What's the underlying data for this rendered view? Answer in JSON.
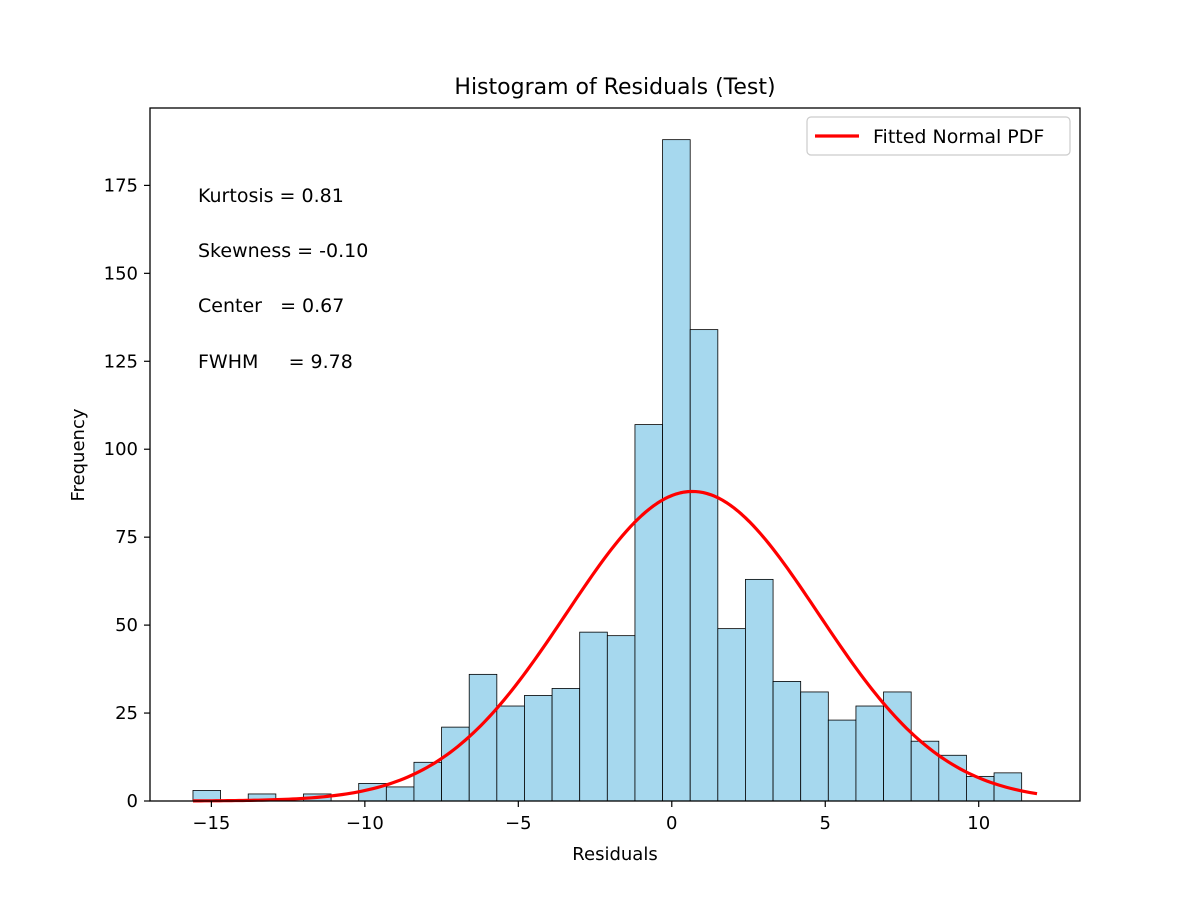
{
  "chart_data": {
    "type": "bar",
    "title": "Histogram of Residuals (Test)",
    "xlabel": "Residuals",
    "ylabel": "Frequency",
    "xlim": [
      -17.0,
      13.3
    ],
    "ylim": [
      0,
      197
    ],
    "xticks": [
      -15,
      -10,
      -5,
      0,
      5,
      10
    ],
    "xtick_labels": [
      "−15",
      "−10",
      "−5",
      "0",
      "5",
      "10"
    ],
    "yticks": [
      0,
      25,
      50,
      75,
      100,
      125,
      150,
      175
    ],
    "ytick_labels": [
      "0",
      "25",
      "50",
      "75",
      "100",
      "125",
      "150",
      "175"
    ],
    "bin_start": -15.6,
    "bin_width": 0.9,
    "counts": [
      3,
      0,
      2,
      0,
      2,
      0,
      5,
      4,
      11,
      21,
      36,
      27,
      30,
      32,
      48,
      47,
      107,
      188,
      134,
      49,
      63,
      34,
      31,
      23,
      27,
      31,
      17,
      13,
      7,
      8
    ],
    "bar_color": "#a6d8ee",
    "bar_edge_color": "#000000",
    "series": [
      {
        "name": "Fitted Normal PDF",
        "type": "line",
        "color": "#ff0000",
        "x_start": -15.6,
        "x_end": 11.9,
        "mean": 0.67,
        "sd": 4.1,
        "peak": 88
      }
    ],
    "legend": {
      "position": "top-right",
      "entries": [
        "Fitted Normal PDF"
      ]
    },
    "annotations": [
      "Kurtosis = 0.81",
      "Skewness = -0.10",
      "Center   = 0.67",
      "FWHM     = 9.78"
    ],
    "grid": false
  }
}
